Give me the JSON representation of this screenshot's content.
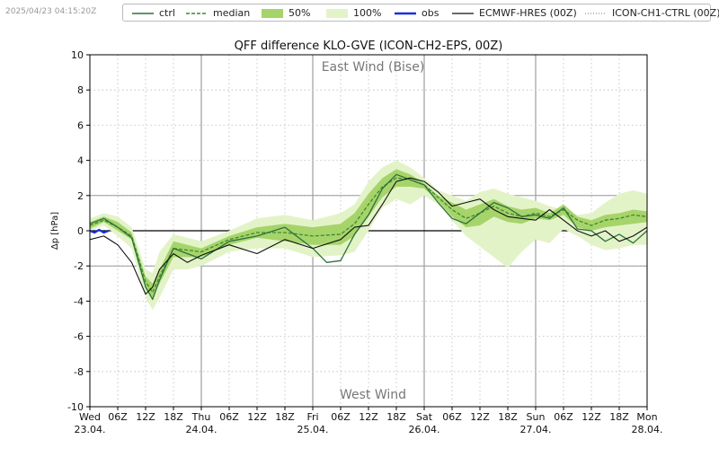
{
  "timestamp": "2025/04/23 04:15:20Z",
  "legend": [
    {
      "label": "ctrl",
      "style": "solid",
      "color": "#2e6f3e"
    },
    {
      "label": "median",
      "style": "dashed",
      "color": "#3c8a2e"
    },
    {
      "label": "50%",
      "style": "fill",
      "color": "#a6d46a"
    },
    {
      "label": "100%",
      "style": "fill",
      "color": "#e3f3c8"
    },
    {
      "label": "obs",
      "style": "solid",
      "color": "#1a2fd8"
    },
    {
      "label": "ECMWF-HRES (00Z)",
      "style": "solid",
      "color": "#111111"
    },
    {
      "label": "ICON-CH1-CTRL (00Z)",
      "style": "dotted",
      "color": "#777777"
    }
  ],
  "chart_data": {
    "type": "line",
    "title": "QFF difference KLO-GVE (ICON-CH2-EPS, 00Z)",
    "ylabel": "Δp [hPa]",
    "xlabel": "",
    "ylim": [
      -10,
      10
    ],
    "yticks": [
      -10,
      -8,
      -6,
      -4,
      -2,
      0,
      2,
      4,
      6,
      8,
      10
    ],
    "xlim": [
      0,
      120
    ],
    "x_unit": "hours since Wed 23.04. 00Z",
    "xticks": [
      {
        "x": 0,
        "line1": "Wed",
        "line2": "23.04."
      },
      {
        "x": 6,
        "line1": "06Z",
        "line2": ""
      },
      {
        "x": 12,
        "line1": "12Z",
        "line2": ""
      },
      {
        "x": 18,
        "line1": "18Z",
        "line2": ""
      },
      {
        "x": 24,
        "line1": "Thu",
        "line2": "24.04."
      },
      {
        "x": 30,
        "line1": "06Z",
        "line2": ""
      },
      {
        "x": 36,
        "line1": "12Z",
        "line2": ""
      },
      {
        "x": 42,
        "line1": "18Z",
        "line2": ""
      },
      {
        "x": 48,
        "line1": "Fri",
        "line2": "25.04."
      },
      {
        "x": 54,
        "line1": "06Z",
        "line2": ""
      },
      {
        "x": 60,
        "line1": "12Z",
        "line2": ""
      },
      {
        "x": 66,
        "line1": "18Z",
        "line2": ""
      },
      {
        "x": 72,
        "line1": "Sat",
        "line2": "26.04."
      },
      {
        "x": 78,
        "line1": "06Z",
        "line2": ""
      },
      {
        "x": 84,
        "line1": "12Z",
        "line2": ""
      },
      {
        "x": 90,
        "line1": "18Z",
        "line2": ""
      },
      {
        "x": 96,
        "line1": "Sun",
        "line2": "27.04."
      },
      {
        "x": 102,
        "line1": "06Z",
        "line2": ""
      },
      {
        "x": 108,
        "line1": "12Z",
        "line2": ""
      },
      {
        "x": 114,
        "line1": "18Z",
        "line2": ""
      },
      {
        "x": 120,
        "line1": "Mon",
        "line2": "28.04."
      }
    ],
    "day_lines": [
      24,
      48,
      72,
      96
    ],
    "ref_lines": [
      2,
      -2
    ],
    "annotations": [
      {
        "text": "East Wind (Bise)",
        "position": "top"
      },
      {
        "text": "West Wind",
        "position": "bottom"
      }
    ],
    "band100": {
      "x": [
        0,
        3,
        6,
        9,
        12,
        13.5,
        15,
        18,
        21,
        24,
        30,
        36,
        42,
        48,
        54,
        57,
        60,
        63,
        66,
        69,
        72,
        75,
        78,
        81,
        84,
        87,
        90,
        93,
        96,
        99,
        102,
        105,
        108,
        111,
        114,
        117,
        120
      ],
      "lower": [
        0,
        0.3,
        -0.3,
        -1.0,
        -3.8,
        -4.5,
        -3.8,
        -2.2,
        -2.2,
        -2.0,
        -1.2,
        -1.0,
        -1.0,
        -1.5,
        -1.4,
        -1.2,
        0.0,
        1.3,
        1.8,
        1.5,
        2.0,
        1.5,
        0.6,
        -0.3,
        -0.9,
        -1.5,
        -2.1,
        -1.2,
        -0.5,
        -0.7,
        0.1,
        -0.3,
        -0.8,
        -1.1,
        -1.0,
        -0.8,
        -0.8
      ],
      "upper": [
        0.7,
        1.0,
        0.8,
        0.2,
        -2.2,
        -2.4,
        -1.2,
        -0.2,
        -0.4,
        -0.6,
        0.0,
        0.7,
        0.9,
        0.6,
        1.0,
        1.5,
        2.8,
        3.6,
        4.0,
        3.6,
        3.0,
        2.3,
        2.0,
        1.7,
        2.2,
        2.4,
        2.1,
        1.9,
        1.7,
        1.4,
        1.2,
        0.9,
        1.0,
        1.6,
        2.1,
        2.3,
        2.1
      ]
    },
    "band50": {
      "x": [
        0,
        3,
        6,
        9,
        12,
        13.5,
        15,
        18,
        21,
        24,
        30,
        36,
        42,
        48,
        54,
        57,
        60,
        63,
        66,
        69,
        72,
        75,
        78,
        81,
        84,
        87,
        90,
        93,
        96,
        99,
        102,
        105,
        108,
        111,
        114,
        117,
        120
      ],
      "lower": [
        0.1,
        0.5,
        0.0,
        -0.5,
        -3.3,
        -3.8,
        -3.0,
        -1.5,
        -1.5,
        -1.5,
        -0.8,
        -0.4,
        -0.6,
        -0.8,
        -0.8,
        -0.3,
        0.8,
        1.9,
        2.5,
        2.5,
        2.4,
        1.7,
        0.8,
        0.2,
        0.3,
        0.8,
        0.5,
        0.4,
        0.7,
        0.6,
        0.9,
        0.2,
        0.0,
        0.2,
        0.3,
        0.4,
        0.5
      ],
      "upper": [
        0.5,
        0.8,
        0.5,
        -0.1,
        -2.6,
        -3.0,
        -2.2,
        -0.6,
        -0.8,
        -1.0,
        -0.3,
        0.2,
        0.4,
        0.2,
        0.4,
        1.0,
        2.1,
        3.0,
        3.5,
        3.2,
        2.7,
        2.0,
        1.6,
        1.2,
        1.5,
        1.8,
        1.4,
        1.2,
        1.3,
        1.0,
        1.5,
        0.8,
        0.6,
        0.9,
        1.0,
        1.2,
        1.1
      ]
    },
    "series": [
      {
        "name": "median",
        "x": [
          0,
          3,
          6,
          9,
          12,
          13.5,
          15,
          18,
          21,
          24,
          30,
          36,
          42,
          48,
          54,
          57,
          60,
          63,
          66,
          69,
          72,
          75,
          78,
          81,
          84,
          87,
          90,
          93,
          96,
          99,
          102,
          105,
          108,
          111,
          114,
          117,
          120
        ],
        "values": [
          0.3,
          0.6,
          0.2,
          -0.3,
          -2.9,
          -3.5,
          -2.6,
          -1.0,
          -1.1,
          -1.2,
          -0.5,
          -0.1,
          -0.1,
          -0.3,
          -0.2,
          0.4,
          1.5,
          2.5,
          3.0,
          2.9,
          2.6,
          1.9,
          1.2,
          0.7,
          1.0,
          1.4,
          1.0,
          0.8,
          1.0,
          0.8,
          1.2,
          0.6,
          0.3,
          0.6,
          0.7,
          0.9,
          0.8
        ]
      },
      {
        "name": "ctrl",
        "x": [
          0,
          3,
          6,
          9,
          12,
          13.5,
          15,
          18,
          21,
          24,
          30,
          36,
          42,
          48,
          51,
          54,
          57,
          60,
          63,
          66,
          69,
          72,
          75,
          78,
          81,
          84,
          87,
          90,
          93,
          96,
          99,
          102,
          105,
          108,
          111,
          114,
          117,
          120
        ],
        "values": [
          0.4,
          0.7,
          0.2,
          -0.4,
          -3.2,
          -3.9,
          -2.8,
          -1.0,
          -1.3,
          -1.6,
          -0.6,
          -0.3,
          0.2,
          -1.0,
          -1.8,
          -1.7,
          -0.2,
          0.9,
          2.4,
          3.2,
          2.9,
          2.6,
          1.6,
          0.7,
          0.4,
          1.0,
          1.6,
          1.3,
          0.8,
          0.9,
          0.7,
          1.3,
          0.1,
          0.0,
          -0.6,
          -0.2,
          -0.7,
          0.0
        ]
      },
      {
        "name": "ECMWF-HRES (00Z)",
        "x": [
          0,
          3,
          6,
          9,
          12,
          13.5,
          15,
          18,
          21,
          24,
          30,
          36,
          42,
          48,
          54,
          57,
          60,
          63,
          66,
          69,
          72,
          75,
          78,
          81,
          84,
          87,
          90,
          93,
          96,
          99,
          102,
          105,
          108,
          111,
          114,
          117,
          120
        ],
        "values": [
          -0.5,
          -0.3,
          -0.8,
          -1.8,
          -3.6,
          -3.2,
          -2.2,
          -1.3,
          -1.8,
          -1.4,
          -0.8,
          -1.3,
          -0.5,
          -1.0,
          -0.5,
          0.2,
          0.3,
          1.5,
          2.8,
          3.0,
          2.8,
          2.2,
          1.4,
          1.6,
          1.8,
          1.2,
          0.8,
          0.7,
          0.6,
          1.2,
          0.6,
          0.0,
          -0.3,
          0.0,
          -0.6,
          -0.3,
          0.2
        ]
      },
      {
        "name": "obs",
        "x": [
          0,
          1,
          2,
          3,
          4
        ],
        "values": [
          0.0,
          -0.1,
          0.05,
          -0.1,
          0.0
        ]
      }
    ]
  }
}
